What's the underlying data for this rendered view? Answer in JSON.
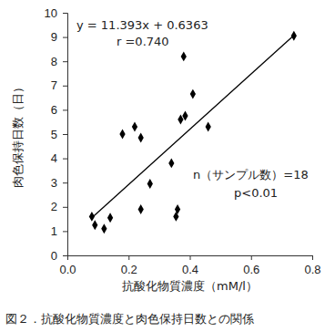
{
  "chart_data": {
    "type": "scatter",
    "title": "図２．抗酸化物質濃度と肉色保持日数との関係",
    "x_label": "抗酸化物質濃度（mM/l）",
    "y_label": "肉色保持日数（日）",
    "annotations": [
      "y = 11.393x + 0.6363",
      "r =0.740",
      "n（サンプル数）=18",
      "p<0.01"
    ],
    "series": [
      {
        "type": "scatter",
        "marker": "diamond",
        "color": "#000000",
        "x": [
          0.08,
          0.09,
          0.12,
          0.14,
          0.18,
          0.22,
          0.24,
          0.24,
          0.27,
          0.34,
          0.355,
          0.36,
          0.37,
          0.38,
          0.385,
          0.41,
          0.46,
          0.74
        ],
        "values": [
          1.6,
          1.25,
          1.1,
          1.55,
          5.0,
          5.3,
          4.85,
          1.9,
          2.95,
          3.8,
          1.6,
          1.9,
          5.6,
          8.2,
          5.75,
          6.65,
          5.3,
          9.05
        ]
      },
      {
        "type": "line",
        "line_style": "solid",
        "color": "#000000",
        "x": [
          0.08,
          0.74
        ],
        "values": [
          1.55,
          9.07
        ]
      }
    ],
    "xlim": [
      0,
      0.8
    ],
    "xticks": [
      {
        "value": 0,
        "label": "0.0"
      },
      0.2,
      0.4,
      0.6,
      0.8
    ],
    "ylim": [
      0,
      10
    ],
    "yticks": [
      0,
      1,
      2,
      3,
      4,
      5,
      6,
      7,
      8,
      9,
      10
    ],
    "grid": false
  }
}
